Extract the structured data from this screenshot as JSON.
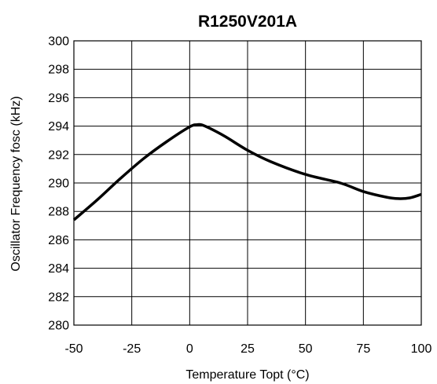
{
  "chart_data": {
    "type": "line",
    "title": "R1250V201A",
    "xlabel": "Temperature Topt (°C)",
    "ylabel": "Oscillator Frequency fosc (kHz)",
    "xlim": [
      -50,
      100
    ],
    "ylim": [
      280,
      300
    ],
    "x_ticks": [
      -50,
      -25,
      0,
      25,
      50,
      75,
      100
    ],
    "y_ticks": [
      280,
      282,
      284,
      286,
      288,
      290,
      292,
      294,
      296,
      298,
      300
    ],
    "grid": true,
    "legend": "none",
    "series": [
      {
        "color": "#000000",
        "x": [
          -50,
          -40,
          -30,
          -20,
          -10,
          0,
          3,
          5,
          8,
          15,
          25,
          35,
          50,
          65,
          75,
          85,
          90,
          95,
          100
        ],
        "y": [
          287.4,
          288.8,
          290.3,
          291.7,
          292.9,
          293.95,
          294.1,
          294.1,
          293.9,
          293.3,
          292.3,
          291.5,
          290.6,
          290.0,
          289.4,
          289.0,
          288.9,
          288.95,
          289.2
        ]
      }
    ]
  }
}
